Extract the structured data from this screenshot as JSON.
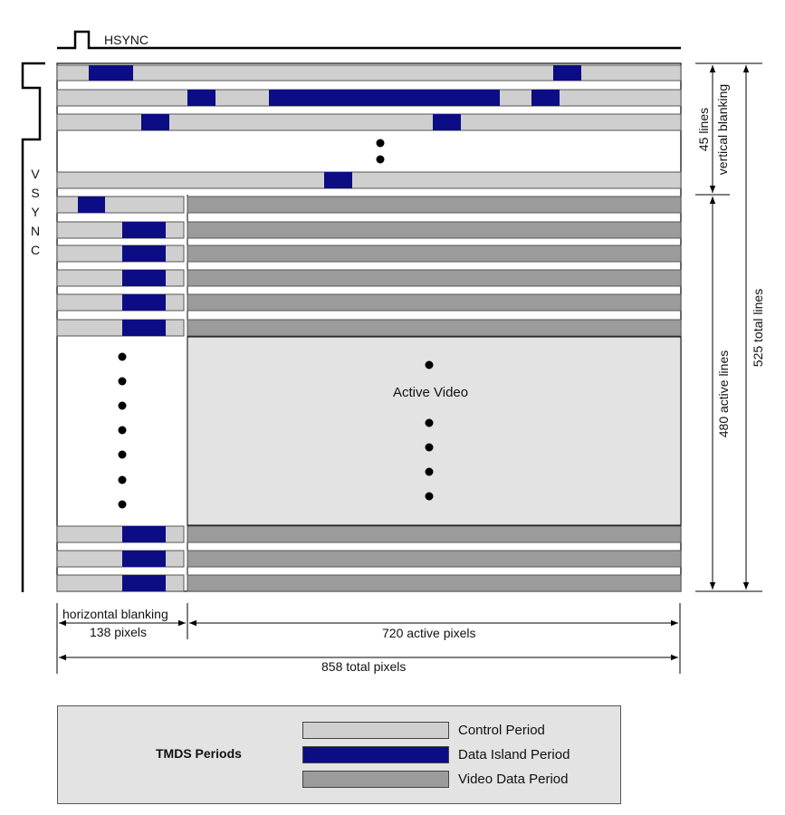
{
  "labels": {
    "hsync": "HSYNC",
    "vsync_letters": [
      "V",
      "S",
      "Y",
      "N",
      "C"
    ],
    "lines_45": "45 lines",
    "vertical_blanking": "vertical blanking",
    "active_lines": "480 active lines",
    "total_lines": "525 total lines",
    "active_video": "Active Video",
    "horizontal_blanking": "horizontal blanking",
    "blank_pixels": "138 pixels",
    "active_pixels": "720 active pixels",
    "total_pixels": "858 total pixels"
  },
  "legend": {
    "title": "TMDS Periods",
    "items": [
      {
        "label": "Control Period",
        "color": "#cfcfcf"
      },
      {
        "label": "Data Island Period",
        "color": "#0c0c84"
      },
      {
        "label": "Video Data Period",
        "color": "#9b9b9b"
      }
    ]
  },
  "colors": {
    "control": "#cfcfcf",
    "data_island": "#0c0c84",
    "video": "#9b9b9b",
    "active_area": "#e3e3e3"
  }
}
